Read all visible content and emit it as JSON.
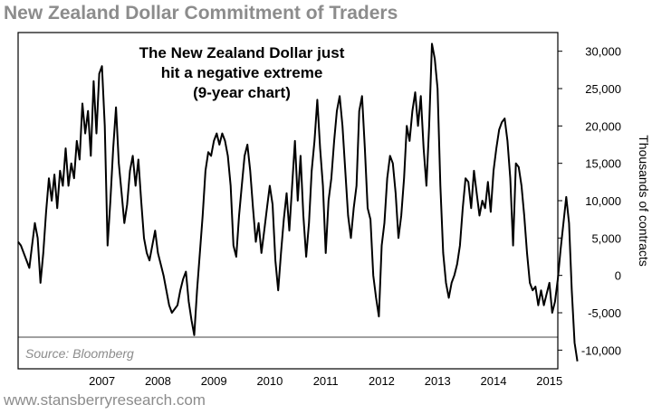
{
  "header": {
    "title": "New Zealand Dollar Commitment of Traders"
  },
  "footer": {
    "url": "www.stansberryresearch.com"
  },
  "chart_data": {
    "type": "line",
    "title": "New Zealand Dollar Commitment of Traders",
    "annotation": [
      "The New Zealand Dollar just",
      "hit a negative extreme",
      "(9-year chart)"
    ],
    "source": "Source: Bloomberg",
    "xlabel": "",
    "ylabel": "Thousands of contracts",
    "xlim": [
      2006.0,
      2015.65
    ],
    "ylim": [
      -12500,
      32500
    ],
    "x_ticks": [
      2007,
      2008,
      2009,
      2010,
      2011,
      2012,
      2013,
      2014,
      2015
    ],
    "y_ticks": [
      {
        "value": 30000,
        "label": "30,000"
      },
      {
        "value": 25000,
        "label": "25,000"
      },
      {
        "value": 20000,
        "label": "20,000"
      },
      {
        "value": 15000,
        "label": "15,000"
      },
      {
        "value": 10000,
        "label": "10,000"
      },
      {
        "value": 5000,
        "label": "5,000"
      },
      {
        "value": 0,
        "label": "0"
      },
      {
        "value": -5000,
        "label": "-5,000"
      },
      {
        "value": -10000,
        "label": "-10,000"
      }
    ],
    "grid": false,
    "legend": "none",
    "series": [
      {
        "color": "#000000",
        "points": [
          [
            2006.0,
            4500
          ],
          [
            2006.05,
            4000
          ],
          [
            2006.1,
            3000
          ],
          [
            2006.15,
            2000
          ],
          [
            2006.2,
            1000
          ],
          [
            2006.25,
            4000
          ],
          [
            2006.3,
            7000
          ],
          [
            2006.35,
            5000
          ],
          [
            2006.4,
            -1000
          ],
          [
            2006.45,
            3000
          ],
          [
            2006.5,
            8500
          ],
          [
            2006.55,
            13000
          ],
          [
            2006.6,
            10000
          ],
          [
            2006.65,
            13500
          ],
          [
            2006.7,
            9000
          ],
          [
            2006.75,
            14000
          ],
          [
            2006.8,
            12000
          ],
          [
            2006.85,
            17000
          ],
          [
            2006.9,
            12000
          ],
          [
            2006.95,
            15000
          ],
          [
            2007.0,
            13000
          ],
          [
            2007.05,
            18000
          ],
          [
            2007.1,
            15500
          ],
          [
            2007.15,
            23000
          ],
          [
            2007.2,
            19000
          ],
          [
            2007.25,
            22000
          ],
          [
            2007.3,
            16000
          ],
          [
            2007.35,
            26000
          ],
          [
            2007.4,
            19000
          ],
          [
            2007.45,
            27000
          ],
          [
            2007.5,
            28000
          ],
          [
            2007.55,
            20000
          ],
          [
            2007.6,
            4000
          ],
          [
            2007.65,
            10000
          ],
          [
            2007.7,
            17000
          ],
          [
            2007.75,
            22500
          ],
          [
            2007.8,
            15000
          ],
          [
            2007.85,
            11000
          ],
          [
            2007.9,
            7000
          ],
          [
            2007.95,
            9500
          ],
          [
            2008.0,
            14000
          ],
          [
            2008.05,
            16000
          ],
          [
            2008.1,
            12000
          ],
          [
            2008.15,
            15500
          ],
          [
            2008.2,
            10000
          ],
          [
            2008.25,
            5000
          ],
          [
            2008.3,
            3000
          ],
          [
            2008.35,
            2000
          ],
          [
            2008.4,
            4000
          ],
          [
            2008.45,
            6000
          ],
          [
            2008.5,
            3000
          ],
          [
            2008.55,
            1500
          ],
          [
            2008.6,
            0
          ],
          [
            2008.65,
            -2000
          ],
          [
            2008.7,
            -4000
          ],
          [
            2008.75,
            -5000
          ],
          [
            2008.8,
            -4500
          ],
          [
            2008.85,
            -4000
          ],
          [
            2008.9,
            -2000
          ],
          [
            2008.95,
            -500
          ],
          [
            2009.0,
            500
          ],
          [
            2009.05,
            -3500
          ],
          [
            2009.1,
            -6000
          ],
          [
            2009.15,
            -8000
          ],
          [
            2009.2,
            -2000
          ],
          [
            2009.25,
            3000
          ],
          [
            2009.3,
            8000
          ],
          [
            2009.35,
            14000
          ],
          [
            2009.4,
            16500
          ],
          [
            2009.45,
            16000
          ],
          [
            2009.5,
            18000
          ],
          [
            2009.55,
            19000
          ],
          [
            2009.6,
            17500
          ],
          [
            2009.65,
            19000
          ],
          [
            2009.7,
            18000
          ],
          [
            2009.75,
            16000
          ],
          [
            2009.8,
            12000
          ],
          [
            2009.85,
            4000
          ],
          [
            2009.9,
            2500
          ],
          [
            2009.95,
            8000
          ],
          [
            2010.0,
            12000
          ],
          [
            2010.05,
            16000
          ],
          [
            2010.1,
            17500
          ],
          [
            2010.15,
            14000
          ],
          [
            2010.2,
            9000
          ],
          [
            2010.25,
            4500
          ],
          [
            2010.3,
            7000
          ],
          [
            2010.35,
            3000
          ],
          [
            2010.4,
            6000
          ],
          [
            2010.45,
            9000
          ],
          [
            2010.5,
            12000
          ],
          [
            2010.55,
            9500
          ],
          [
            2010.6,
            2000
          ],
          [
            2010.65,
            -2000
          ],
          [
            2010.7,
            3000
          ],
          [
            2010.75,
            7500
          ],
          [
            2010.8,
            11000
          ],
          [
            2010.85,
            6000
          ],
          [
            2010.9,
            12000
          ],
          [
            2010.95,
            18000
          ],
          [
            2011.0,
            10000
          ],
          [
            2011.05,
            16000
          ],
          [
            2011.1,
            8000
          ],
          [
            2011.15,
            2500
          ],
          [
            2011.2,
            7000
          ],
          [
            2011.25,
            14000
          ],
          [
            2011.3,
            18000
          ],
          [
            2011.35,
            23500
          ],
          [
            2011.4,
            17000
          ],
          [
            2011.45,
            12000
          ],
          [
            2011.5,
            3000
          ],
          [
            2011.55,
            10000
          ],
          [
            2011.6,
            13000
          ],
          [
            2011.65,
            18000
          ],
          [
            2011.7,
            22000
          ],
          [
            2011.75,
            24000
          ],
          [
            2011.8,
            20000
          ],
          [
            2011.85,
            14000
          ],
          [
            2011.9,
            8000
          ],
          [
            2011.95,
            5000
          ],
          [
            2012.0,
            9000
          ],
          [
            2012.05,
            12000
          ],
          [
            2012.1,
            22000
          ],
          [
            2012.15,
            24000
          ],
          [
            2012.2,
            17000
          ],
          [
            2012.25,
            9000
          ],
          [
            2012.3,
            7500
          ],
          [
            2012.35,
            0
          ],
          [
            2012.4,
            -3000
          ],
          [
            2012.45,
            -5500
          ],
          [
            2012.5,
            4000
          ],
          [
            2012.55,
            7000
          ],
          [
            2012.6,
            13000
          ],
          [
            2012.65,
            16000
          ],
          [
            2012.7,
            15000
          ],
          [
            2012.75,
            11000
          ],
          [
            2012.8,
            5000
          ],
          [
            2012.85,
            8000
          ],
          [
            2012.9,
            13000
          ],
          [
            2012.95,
            20000
          ],
          [
            2013.0,
            18000
          ],
          [
            2013.05,
            22000
          ],
          [
            2013.1,
            24500
          ],
          [
            2013.15,
            20000
          ],
          [
            2013.2,
            24000
          ],
          [
            2013.25,
            17000
          ],
          [
            2013.3,
            12000
          ],
          [
            2013.35,
            20000
          ],
          [
            2013.4,
            31000
          ],
          [
            2013.45,
            29000
          ],
          [
            2013.5,
            25000
          ],
          [
            2013.55,
            12000
          ],
          [
            2013.6,
            3000
          ],
          [
            2013.65,
            -1000
          ],
          [
            2013.7,
            -3000
          ],
          [
            2013.75,
            -1000
          ],
          [
            2013.8,
            0
          ],
          [
            2013.85,
            1500
          ],
          [
            2013.9,
            4000
          ],
          [
            2013.95,
            9000
          ],
          [
            2014.0,
            13000
          ],
          [
            2014.05,
            12500
          ],
          [
            2014.1,
            9000
          ],
          [
            2014.15,
            14000
          ],
          [
            2014.2,
            11000
          ],
          [
            2014.25,
            8000
          ],
          [
            2014.3,
            10000
          ],
          [
            2014.35,
            9000
          ],
          [
            2014.4,
            12500
          ],
          [
            2014.45,
            8500
          ],
          [
            2014.5,
            14000
          ],
          [
            2014.55,
            17000
          ],
          [
            2014.6,
            19500
          ],
          [
            2014.65,
            20500
          ],
          [
            2014.7,
            21000
          ],
          [
            2014.75,
            18000
          ],
          [
            2014.8,
            13000
          ],
          [
            2014.85,
            4000
          ],
          [
            2014.9,
            15000
          ],
          [
            2014.95,
            14500
          ],
          [
            2015.0,
            12000
          ],
          [
            2015.05,
            8000
          ],
          [
            2015.1,
            3000
          ],
          [
            2015.15,
            -1000
          ],
          [
            2015.2,
            -2000
          ],
          [
            2015.25,
            -1500
          ],
          [
            2015.3,
            -4000
          ],
          [
            2015.35,
            -2000
          ],
          [
            2015.4,
            -4000
          ],
          [
            2015.45,
            -2500
          ],
          [
            2015.5,
            -1000
          ],
          [
            2015.55,
            -5000
          ],
          [
            2015.6,
            -3500
          ],
          [
            2015.65,
            -500
          ],
          [
            2015.7,
            3500
          ],
          [
            2015.75,
            7000
          ],
          [
            2015.8,
            10500
          ],
          [
            2015.85,
            7000
          ],
          [
            2015.9,
            -2000
          ],
          [
            2015.95,
            -9000
          ],
          [
            2016.0,
            -11500
          ]
        ]
      }
    ]
  }
}
